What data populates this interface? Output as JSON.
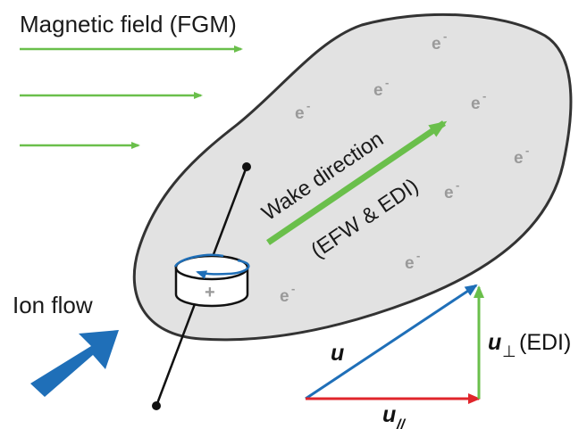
{
  "title": "Magnetic field (FGM)",
  "ion_flow_label": "Ion flow",
  "wake_label_line1": "Wake direction",
  "wake_label_line2": "(EFW & EDI)",
  "electron_symbol": "e",
  "electron_charge": "-",
  "spacecraft_charge": "+",
  "vector_u": "u",
  "vector_u_perp": "u",
  "perp_symbol": "⊥",
  "edi_suffix": "(EDI)",
  "vector_u_par": "u",
  "par_symbol": "//",
  "colors": {
    "field_arrow": "#6abf4b",
    "wake_arrow": "#6abf4b",
    "ion_arrow": "#1f6fb8",
    "u_vector": "#1f6fb8",
    "u_perp_vector": "#6abf4b",
    "u_par_vector": "#e0252b",
    "cloud_fill": "#e2e2e2",
    "cloud_stroke": "#333333",
    "electron_text": "#9a9a9a",
    "rotation_arrow": "#1f6fb8"
  }
}
